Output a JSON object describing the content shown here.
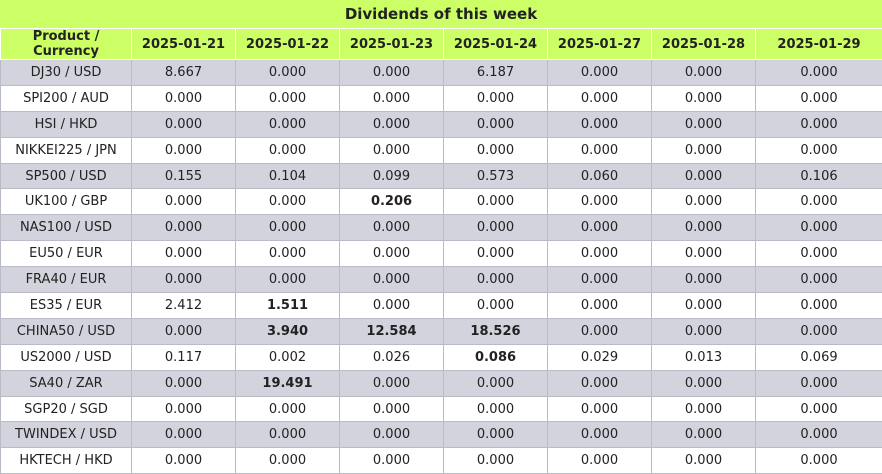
{
  "title": "Dividends of this week",
  "headers": [
    "Product / Currency",
    "2025-01-21",
    "2025-01-22",
    "2025-01-23",
    "2025-01-24",
    "2025-01-27",
    "2025-01-28",
    "2025-01-29"
  ],
  "rows": [
    {
      "product": "DJ30 / USD",
      "values": [
        "8.667",
        "0.000",
        "0.000",
        "6.187",
        "0.000",
        "0.000",
        "0.000"
      ],
      "bold": []
    },
    {
      "product": "SPI200 / AUD",
      "values": [
        "0.000",
        "0.000",
        "0.000",
        "0.000",
        "0.000",
        "0.000",
        "0.000"
      ],
      "bold": []
    },
    {
      "product": "HSI / HKD",
      "values": [
        "0.000",
        "0.000",
        "0.000",
        "0.000",
        "0.000",
        "0.000",
        "0.000"
      ],
      "bold": []
    },
    {
      "product": "NIKKEI225 / JPN",
      "values": [
        "0.000",
        "0.000",
        "0.000",
        "0.000",
        "0.000",
        "0.000",
        "0.000"
      ],
      "bold": []
    },
    {
      "product": "SP500 / USD",
      "values": [
        "0.155",
        "0.104",
        "0.099",
        "0.573",
        "0.060",
        "0.000",
        "0.106"
      ],
      "bold": []
    },
    {
      "product": "UK100 / GBP",
      "values": [
        "0.000",
        "0.000",
        "0.206",
        "0.000",
        "0.000",
        "0.000",
        "0.000"
      ],
      "bold": [
        2
      ]
    },
    {
      "product": "NAS100 / USD",
      "values": [
        "0.000",
        "0.000",
        "0.000",
        "0.000",
        "0.000",
        "0.000",
        "0.000"
      ],
      "bold": []
    },
    {
      "product": "EU50 / EUR",
      "values": [
        "0.000",
        "0.000",
        "0.000",
        "0.000",
        "0.000",
        "0.000",
        "0.000"
      ],
      "bold": []
    },
    {
      "product": "FRA40 / EUR",
      "values": [
        "0.000",
        "0.000",
        "0.000",
        "0.000",
        "0.000",
        "0.000",
        "0.000"
      ],
      "bold": []
    },
    {
      "product": "ES35 / EUR",
      "values": [
        "2.412",
        "1.511",
        "0.000",
        "0.000",
        "0.000",
        "0.000",
        "0.000"
      ],
      "bold": [
        1
      ]
    },
    {
      "product": "CHINA50 / USD",
      "values": [
        "0.000",
        "3.940",
        "12.584",
        "18.526",
        "0.000",
        "0.000",
        "0.000"
      ],
      "bold": [
        1,
        2,
        3
      ]
    },
    {
      "product": "US2000 / USD",
      "values": [
        "0.117",
        "0.002",
        "0.026",
        "0.086",
        "0.029",
        "0.013",
        "0.069"
      ],
      "bold": [
        3
      ]
    },
    {
      "product": "SA40 / ZAR",
      "values": [
        "0.000",
        "19.491",
        "0.000",
        "0.000",
        "0.000",
        "0.000",
        "0.000"
      ],
      "bold": [
        1
      ]
    },
    {
      "product": "SGP20 / SGD",
      "values": [
        "0.000",
        "0.000",
        "0.000",
        "0.000",
        "0.000",
        "0.000",
        "0.000"
      ],
      "bold": []
    },
    {
      "product": "TWINDEX / USD",
      "values": [
        "0.000",
        "0.000",
        "0.000",
        "0.000",
        "0.000",
        "0.000",
        "0.000"
      ],
      "bold": []
    },
    {
      "product": "HKTECH / HKD",
      "values": [
        "0.000",
        "0.000",
        "0.000",
        "0.000",
        "0.000",
        "0.000",
        "0.000"
      ],
      "bold": []
    }
  ],
  "colors": {
    "header_bg": "#ccff66",
    "row_alt_bg": "#d2d3dc",
    "row_bg": "#ffffff",
    "border": "#b9bcc6"
  }
}
